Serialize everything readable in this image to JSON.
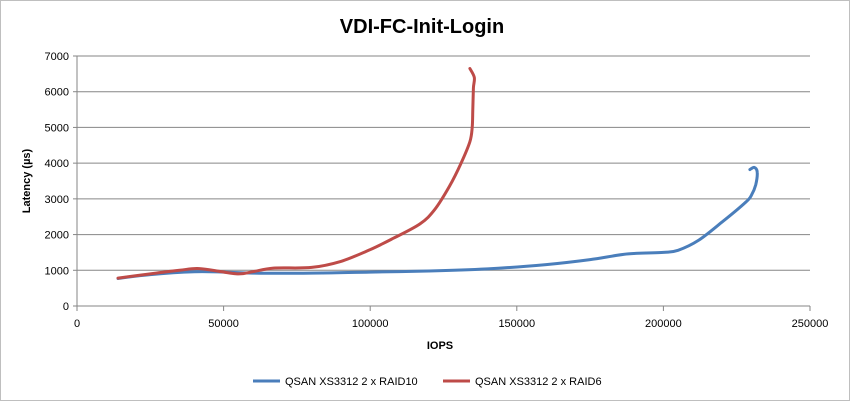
{
  "chart_data": {
    "type": "line",
    "title": "VDI-FC-Init-Login",
    "xlabel": "IOPS",
    "ylabel": "Latency (µs)",
    "xlim": [
      0,
      250000
    ],
    "ylim": [
      0,
      7000
    ],
    "xticks": [
      "0",
      "50000",
      "100000",
      "150000",
      "200000",
      "250000"
    ],
    "yticks": [
      "0",
      "1000",
      "2000",
      "3000",
      "4000",
      "5000",
      "6000",
      "7000"
    ],
    "grid": "horizontal",
    "legend_position": "bottom",
    "series": [
      {
        "name": "QSAN XS3312 2 x RAID10",
        "color": "#4a7ebb",
        "points": [
          [
            14000,
            770
          ],
          [
            25000,
            880
          ],
          [
            40000,
            960
          ],
          [
            50000,
            950
          ],
          [
            60000,
            920
          ],
          [
            80000,
            920
          ],
          [
            100000,
            950
          ],
          [
            120000,
            980
          ],
          [
            140000,
            1040
          ],
          [
            160000,
            1160
          ],
          [
            175000,
            1300
          ],
          [
            188000,
            1460
          ],
          [
            200000,
            1500
          ],
          [
            205000,
            1560
          ],
          [
            212000,
            1840
          ],
          [
            220000,
            2350
          ],
          [
            228000,
            2900
          ],
          [
            230000,
            3100
          ],
          [
            231500,
            3400
          ],
          [
            232000,
            3750
          ],
          [
            231000,
            3880
          ],
          [
            229500,
            3820
          ]
        ]
      },
      {
        "name": "QSAN XS3312 2 x RAID6",
        "color": "#be4b48",
        "points": [
          [
            14000,
            780
          ],
          [
            25000,
            900
          ],
          [
            35000,
            1000
          ],
          [
            41000,
            1050
          ],
          [
            47000,
            990
          ],
          [
            55000,
            900
          ],
          [
            60000,
            960
          ],
          [
            67000,
            1060
          ],
          [
            80000,
            1080
          ],
          [
            90000,
            1250
          ],
          [
            100000,
            1580
          ],
          [
            108000,
            1900
          ],
          [
            117000,
            2300
          ],
          [
            122000,
            2700
          ],
          [
            127000,
            3350
          ],
          [
            131000,
            4000
          ],
          [
            134000,
            4600
          ],
          [
            134800,
            5000
          ],
          [
            135000,
            5500
          ],
          [
            135200,
            6100
          ],
          [
            135500,
            6400
          ],
          [
            134000,
            6650
          ]
        ]
      }
    ]
  }
}
